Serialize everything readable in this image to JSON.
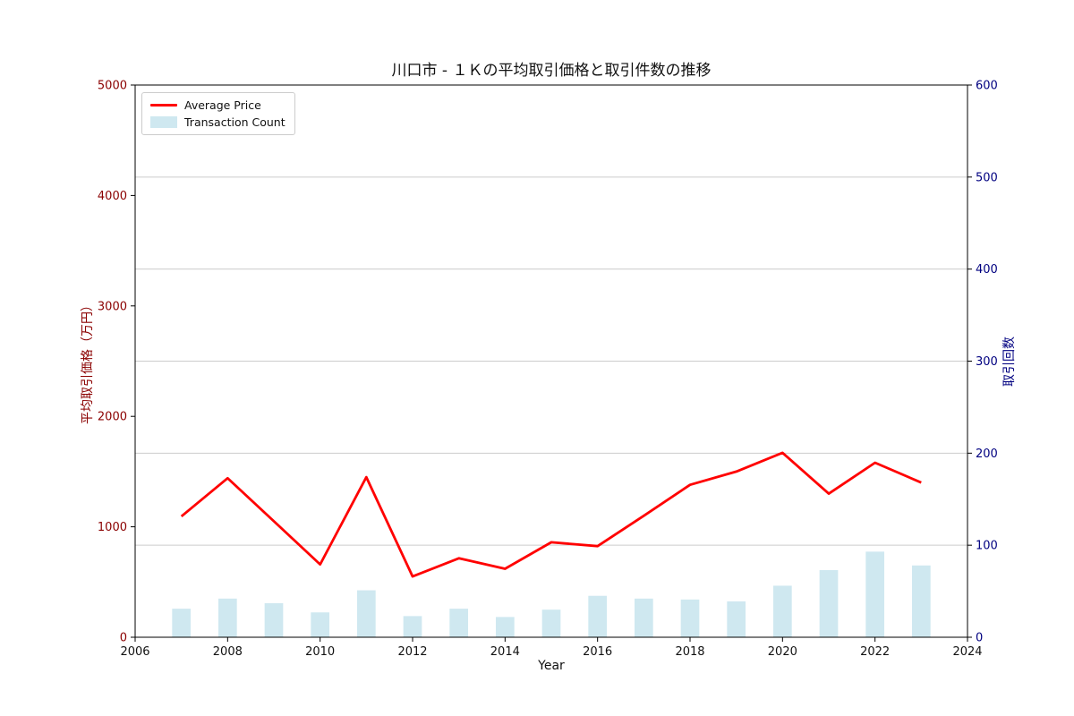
{
  "chart_data": {
    "type": "line+bar",
    "title": "川口市 - １Ｋの平均取引価格と取引件数の推移",
    "xlabel": "Year",
    "ylabel_left": "平均取引価格（万円）",
    "ylabel_right": "取引回数",
    "xlim": [
      2006,
      2024
    ],
    "x_ticks": [
      2006,
      2008,
      2010,
      2012,
      2014,
      2016,
      2018,
      2020,
      2022,
      2024
    ],
    "ylim_left": [
      0,
      5000
    ],
    "yticks_left": [
      0,
      1000,
      2000,
      3000,
      4000,
      5000
    ],
    "ylim_right": [
      0,
      600
    ],
    "yticks_right": [
      0,
      100,
      200,
      300,
      400,
      500,
      600
    ],
    "years": [
      2007,
      2008,
      2009,
      2010,
      2011,
      2012,
      2013,
      2014,
      2015,
      2016,
      2017,
      2018,
      2019,
      2020,
      2021,
      2022,
      2023
    ],
    "series": [
      {
        "name": "Average Price",
        "type": "line",
        "axis": "left",
        "color": "#ff0000",
        "values": [
          1095,
          1440,
          1050,
          660,
          1450,
          550,
          715,
          620,
          860,
          825,
          1100,
          1380,
          1500,
          1670,
          1300,
          1580,
          1400
        ]
      },
      {
        "name": "Transaction Count",
        "type": "bar",
        "axis": "right",
        "color": "#cfe8f0",
        "values": [
          31,
          42,
          37,
          27,
          51,
          23,
          31,
          22,
          30,
          45,
          42,
          41,
          39,
          56,
          73,
          93,
          78
        ]
      }
    ],
    "legend_position": "upper-left",
    "grid": true,
    "colors": {
      "left_axis_text": "#8b0000",
      "right_axis_text": "#000080",
      "grid_line": "#cccccc",
      "spine": "#000000",
      "tick_text": "#111111"
    }
  }
}
